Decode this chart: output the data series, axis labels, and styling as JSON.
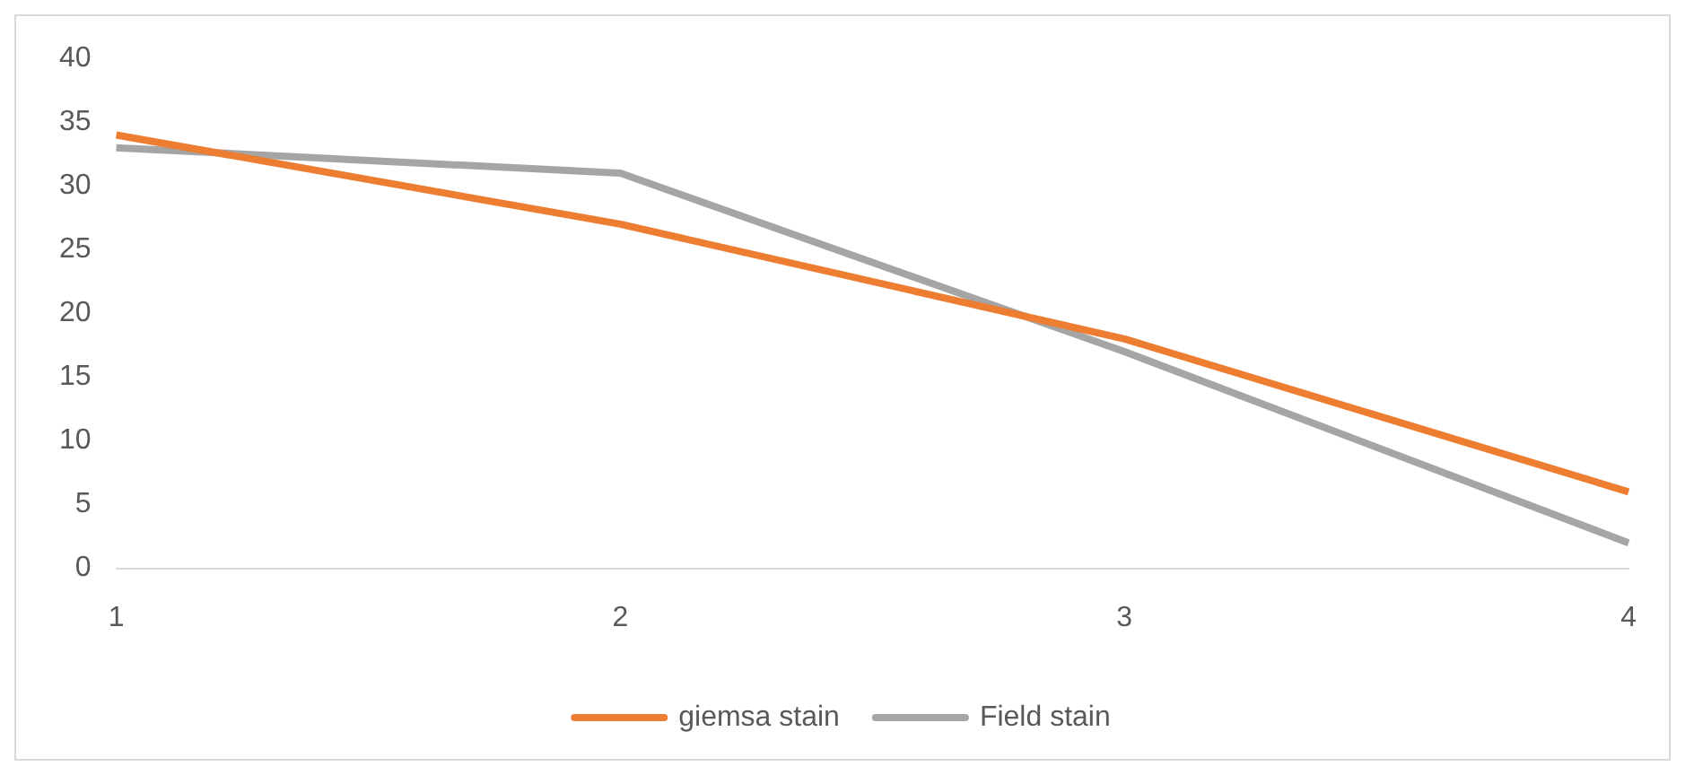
{
  "chart_data": {
    "type": "line",
    "categories": [
      "1",
      "2",
      "3",
      "4"
    ],
    "series": [
      {
        "name": "giemsa stain",
        "color": "#ed7d31",
        "values": [
          34,
          27,
          18,
          6
        ]
      },
      {
        "name": "Field stain",
        "color": "#a5a5a5",
        "values": [
          33,
          31,
          17,
          2
        ]
      }
    ],
    "ylim": [
      0,
      40
    ],
    "yticks": [
      0,
      5,
      10,
      15,
      20,
      25,
      30,
      35,
      40
    ],
    "grid": false,
    "legend": "bottom",
    "marker": "none",
    "line_style": "solid"
  }
}
